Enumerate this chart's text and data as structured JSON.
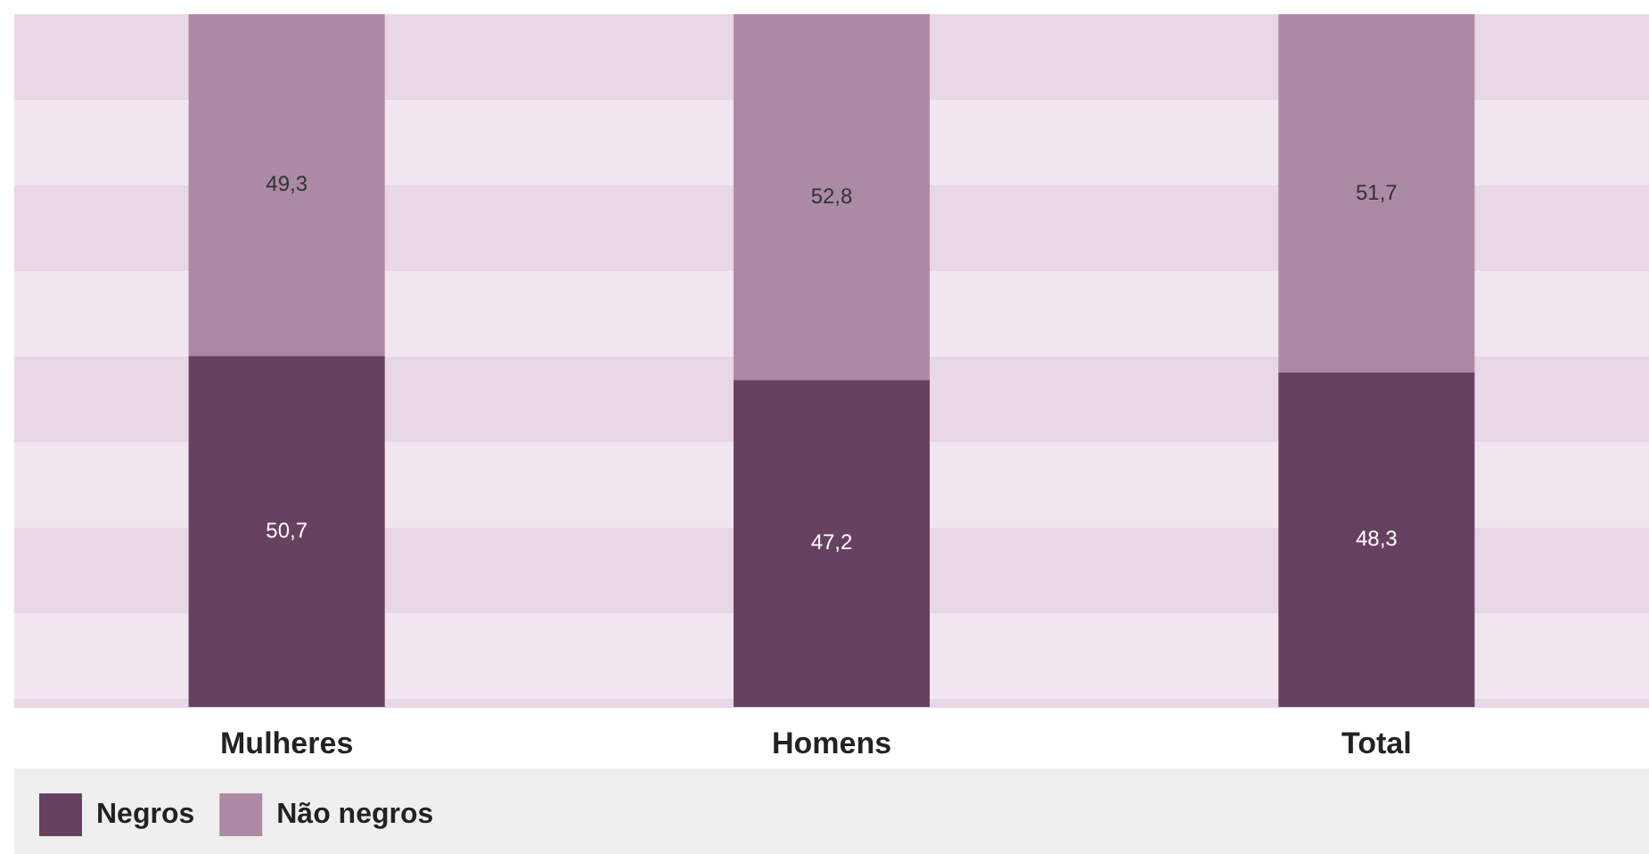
{
  "chart_data": {
    "type": "bar",
    "stacked": true,
    "categories": [
      "Mulheres",
      "Homens",
      "Total"
    ],
    "series": [
      {
        "name": "Negros",
        "color": "#674260",
        "values": [
          50.7,
          47.2,
          48.3
        ],
        "value_labels": [
          "50,7",
          "47,2",
          "48,3"
        ]
      },
      {
        "name": "Não negros",
        "color": "#ab8aa6",
        "values": [
          49.3,
          52.8,
          51.7
        ],
        "value_labels": [
          "49,3",
          "52,8",
          "51,7"
        ]
      }
    ],
    "ylim": [
      0,
      100
    ],
    "tick_labels": "x",
    "legend": "bottom left"
  }
}
